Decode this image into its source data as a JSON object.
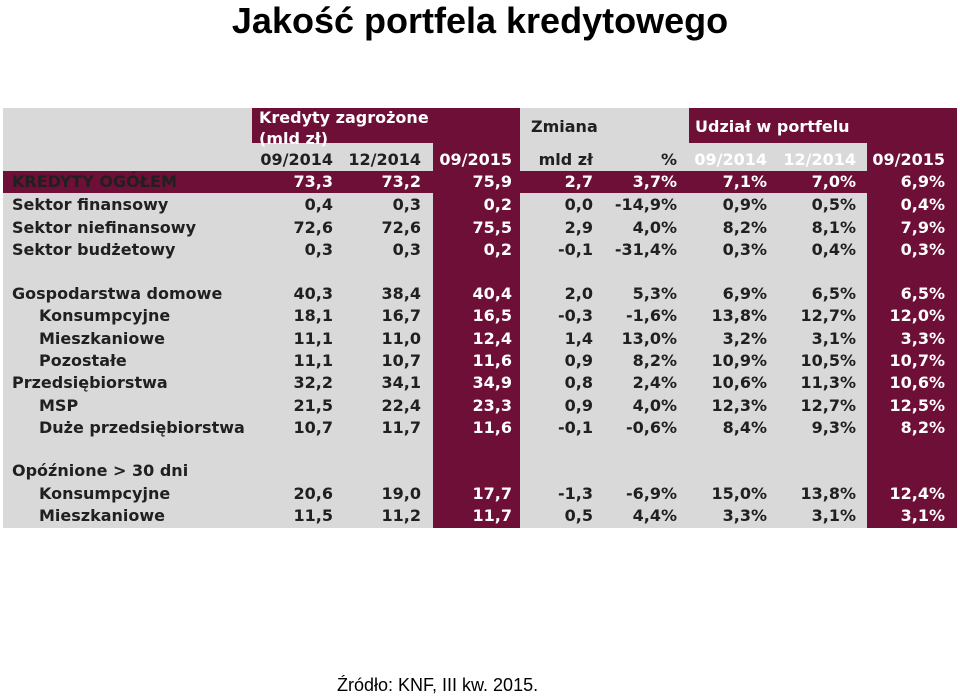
{
  "title": "Jakość portfela kredytowego",
  "header": {
    "group_credit": "Kredyty zagrożone",
    "group_credit_unit": "(mld zł)",
    "group_change": "Zmiana",
    "group_share": "Udział w portfelu",
    "sub": [
      "09/2014",
      "12/2014",
      "09/2015",
      "mld zł",
      "%",
      "09/2014",
      "12/2014",
      "09/2015"
    ]
  },
  "rows": [
    {
      "label": "KREDYTY OGÓŁEM",
      "v": [
        "73,3",
        "73,2",
        "75,9",
        "2,7",
        "3,7%",
        "7,1%",
        "7,0%",
        "6,9%"
      ]
    },
    {
      "label": "Sektor finansowy",
      "v": [
        "0,4",
        "0,3",
        "0,2",
        "0,0",
        "-14,9%",
        "0,9%",
        "0,5%",
        "0,4%"
      ]
    },
    {
      "label": "Sektor niefinansowy",
      "v": [
        "72,6",
        "72,6",
        "75,5",
        "2,9",
        "4,0%",
        "8,2%",
        "8,1%",
        "7,9%"
      ]
    },
    {
      "label": "Sektor budżetowy",
      "v": [
        "0,3",
        "0,3",
        "0,2",
        "-0,1",
        "-31,4%",
        "0,3%",
        "0,4%",
        "0,3%"
      ]
    },
    {
      "label": "Gospodarstwa domowe",
      "v": [
        "40,3",
        "38,4",
        "40,4",
        "2,0",
        "5,3%",
        "6,9%",
        "6,5%",
        "6,5%"
      ]
    },
    {
      "label": "Konsumpcyjne",
      "v": [
        "18,1",
        "16,7",
        "16,5",
        "-0,3",
        "-1,6%",
        "13,8%",
        "12,7%",
        "12,0%"
      ]
    },
    {
      "label": "Mieszkaniowe",
      "v": [
        "11,1",
        "11,0",
        "12,4",
        "1,4",
        "13,0%",
        "3,2%",
        "3,1%",
        "3,3%"
      ]
    },
    {
      "label": "Pozostałe",
      "v": [
        "11,1",
        "10,7",
        "11,6",
        "0,9",
        "8,2%",
        "10,9%",
        "10,5%",
        "10,7%"
      ]
    },
    {
      "label": "Przedsiębiorstwa",
      "v": [
        "32,2",
        "34,1",
        "34,9",
        "0,8",
        "2,4%",
        "10,6%",
        "11,3%",
        "10,6%"
      ]
    },
    {
      "label": "MSP",
      "v": [
        "21,5",
        "22,4",
        "23,3",
        "0,9",
        "4,0%",
        "12,3%",
        "12,7%",
        "12,5%"
      ]
    },
    {
      "label": "Duże przedsiębiorstwa",
      "v": [
        "10,7",
        "11,7",
        "11,6",
        "-0,1",
        "-0,6%",
        "8,4%",
        "9,3%",
        "8,2%"
      ]
    },
    {
      "label": "Opóźnione > 30 dni",
      "v": [
        "",
        "",
        "",
        "",
        "",
        "",
        "",
        ""
      ]
    },
    {
      "label": "Konsumpcyjne",
      "v": [
        "20,6",
        "19,0",
        "17,7",
        "-1,3",
        "-6,9%",
        "15,0%",
        "13,8%",
        "12,4%"
      ]
    },
    {
      "label": "Mieszkaniowe",
      "v": [
        "11,5",
        "11,2",
        "11,7",
        "0,5",
        "4,4%",
        "3,3%",
        "3,1%",
        "3,1%"
      ]
    }
  ],
  "source": "Źródło: KNF, III kw. 2015.",
  "colors": {
    "maroon": "#6d0f36",
    "grey": "#d9d9d9",
    "white": "#ffffff"
  }
}
